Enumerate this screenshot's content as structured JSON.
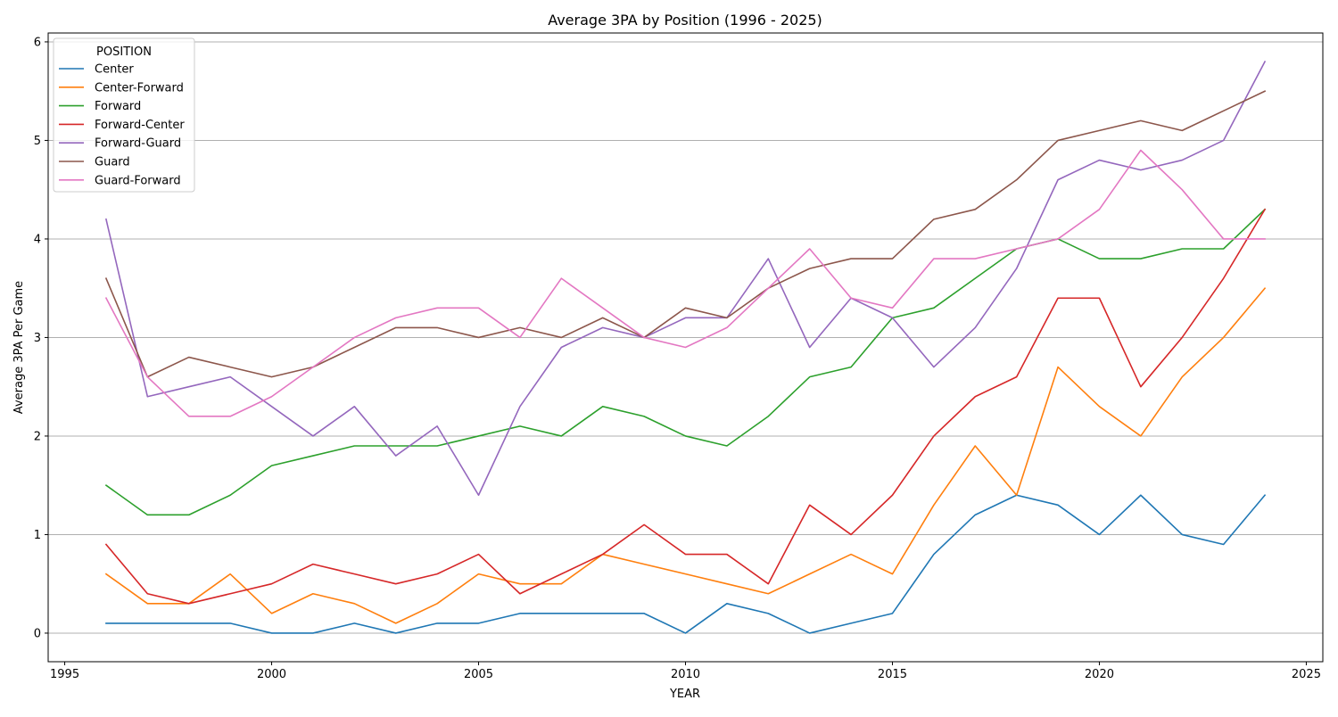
{
  "chart_data": {
    "type": "line",
    "title": "Average 3PA by Position (1996 - 2025)",
    "xlabel": "YEAR",
    "ylabel": "Average 3PA Per Game",
    "xlim": [
      1994.6,
      2025.4
    ],
    "ylim": [
      -0.29,
      6.09
    ],
    "x_ticks": [
      1995,
      2000,
      2005,
      2010,
      2015,
      2020,
      2025
    ],
    "y_ticks": [
      0,
      1,
      2,
      3,
      4,
      5,
      6
    ],
    "grid": "horizontal",
    "legend": {
      "title": "POSITION",
      "placement": "top-left"
    },
    "x": [
      1996,
      1997,
      1998,
      1999,
      2000,
      2001,
      2002,
      2003,
      2004,
      2005,
      2006,
      2007,
      2008,
      2009,
      2010,
      2011,
      2012,
      2013,
      2014,
      2015,
      2016,
      2017,
      2018,
      2019,
      2020,
      2021,
      2022,
      2023,
      2024
    ],
    "series": [
      {
        "name": "Center",
        "color": "#1f77b4",
        "values": [
          0.1,
          0.1,
          0.1,
          0.1,
          0.0,
          0.0,
          0.1,
          0.0,
          0.1,
          0.1,
          0.2,
          0.2,
          0.2,
          0.2,
          0.0,
          0.3,
          0.2,
          0.0,
          0.1,
          0.2,
          0.8,
          1.2,
          1.4,
          1.3,
          1.0,
          1.4,
          1.0,
          0.9,
          1.4
        ]
      },
      {
        "name": "Center-Forward",
        "color": "#ff7f0e",
        "values": [
          0.6,
          0.3,
          0.3,
          0.6,
          0.2,
          0.4,
          0.3,
          0.1,
          0.3,
          0.6,
          0.5,
          0.5,
          0.8,
          0.7,
          0.6,
          0.5,
          0.4,
          0.6,
          0.8,
          0.6,
          1.3,
          1.9,
          1.4,
          2.7,
          2.3,
          2.0,
          2.6,
          3.0,
          3.5
        ]
      },
      {
        "name": "Forward",
        "color": "#2ca02c",
        "values": [
          1.5,
          1.2,
          1.2,
          1.4,
          1.7,
          1.8,
          1.9,
          1.9,
          1.9,
          2.0,
          2.1,
          2.0,
          2.3,
          2.2,
          2.0,
          1.9,
          2.2,
          2.6,
          2.7,
          3.2,
          3.3,
          3.6,
          3.9,
          4.0,
          3.8,
          3.8,
          3.9,
          3.9,
          4.3
        ]
      },
      {
        "name": "Forward-Center",
        "color": "#d62728",
        "values": [
          0.9,
          0.4,
          0.3,
          0.4,
          0.5,
          0.7,
          0.6,
          0.5,
          0.6,
          0.8,
          0.4,
          0.6,
          0.8,
          1.1,
          0.8,
          0.8,
          0.5,
          1.3,
          1.0,
          1.4,
          2.0,
          2.4,
          2.6,
          3.4,
          3.4,
          2.5,
          3.0,
          3.6,
          4.3
        ]
      },
      {
        "name": "Forward-Guard",
        "color": "#9467bd",
        "values": [
          4.2,
          2.4,
          2.5,
          2.6,
          2.3,
          2.0,
          2.3,
          1.8,
          2.1,
          1.4,
          2.3,
          2.9,
          3.1,
          3.0,
          3.2,
          3.2,
          3.8,
          2.9,
          3.4,
          3.2,
          2.7,
          3.1,
          3.7,
          4.6,
          4.8,
          4.7,
          4.8,
          5.0,
          5.8
        ]
      },
      {
        "name": "Guard",
        "color": "#8c564b",
        "values": [
          3.6,
          2.6,
          2.8,
          2.7,
          2.6,
          2.7,
          2.9,
          3.1,
          3.1,
          3.0,
          3.1,
          3.0,
          3.2,
          3.0,
          3.3,
          3.2,
          3.5,
          3.7,
          3.8,
          3.8,
          4.2,
          4.3,
          4.6,
          5.0,
          5.1,
          5.2,
          5.1,
          5.3,
          5.5
        ]
      },
      {
        "name": "Guard-Forward",
        "color": "#e377c2",
        "values": [
          3.4,
          2.6,
          2.2,
          2.2,
          2.4,
          2.7,
          3.0,
          3.2,
          3.3,
          3.3,
          3.0,
          3.6,
          3.3,
          3.0,
          2.9,
          3.1,
          3.5,
          3.9,
          3.4,
          3.3,
          3.8,
          3.8,
          3.9,
          4.0,
          4.3,
          4.9,
          4.5,
          4.0,
          4.0
        ]
      }
    ]
  }
}
